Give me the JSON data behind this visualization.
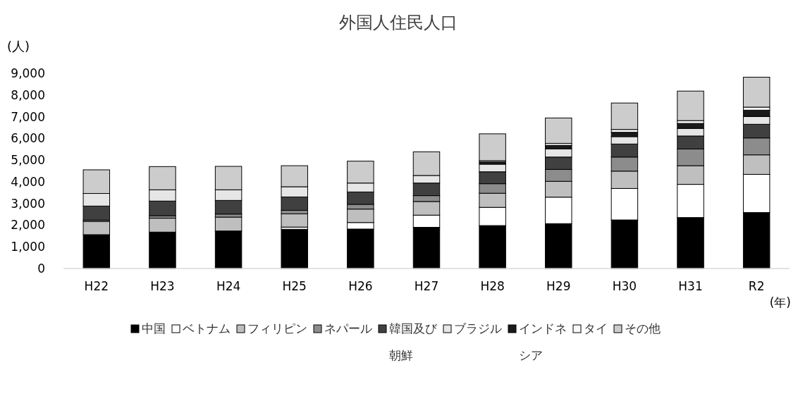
{
  "chart_data": {
    "type": "bar",
    "title": "外国人住民人口",
    "ylabel": "(人)",
    "xlabel": "(年)",
    "stacked": true,
    "legend": "bottom",
    "grid": false,
    "categories": [
      "H22",
      "H23",
      "H24",
      "H25",
      "H26",
      "H27",
      "H28",
      "H29",
      "H30",
      "H31",
      "R2"
    ],
    "ylim": [
      0,
      9000
    ],
    "yticks": [
      0,
      {
        "value": 1000,
        "label": "1,000"
      },
      {
        "value": 2000,
        "label": "2,000"
      },
      {
        "value": 3000,
        "label": "3,000"
      },
      {
        "value": 4000,
        "label": "4,000"
      },
      {
        "value": 5000,
        "label": "5,000"
      },
      {
        "value": 6000,
        "label": "6,000"
      },
      {
        "value": 7000,
        "label": "7,000"
      },
      {
        "value": 8000,
        "label": "8,000"
      },
      {
        "value": 9000,
        "label": "9,000"
      }
    ],
    "series": [
      {
        "name": "中国",
        "color": "#000000",
        "values": [
          1560,
          1680,
          1730,
          1810,
          1820,
          1900,
          1980,
          2070,
          2240,
          2350,
          2580
        ]
      },
      {
        "name": "ベトナム",
        "color": "#ffffff",
        "values": [
          null,
          null,
          null,
          100,
          300,
          560,
          840,
          1220,
          1450,
          1530,
          1760
        ]
      },
      {
        "name": "フィリピン",
        "color": "#bfbfbf",
        "values": [
          610,
          640,
          640,
          610,
          620,
          630,
          650,
          730,
          800,
          860,
          900
        ]
      },
      {
        "name": "ネパール",
        "color": "#8c8c8c",
        "values": [
          60,
          110,
          140,
          160,
          220,
          270,
          440,
          550,
          650,
          770,
          780
        ]
      },
      {
        "name": "韓国及び朝鮮",
        "color": "#404040",
        "values": [
          650,
          680,
          630,
          620,
          570,
          580,
          550,
          570,
          600,
          600,
          630
        ]
      },
      {
        "name": "ブラジル",
        "color": "#e6e6e6",
        "values": [
          580,
          520,
          490,
          470,
          410,
          350,
          350,
          380,
          340,
          350,
          360
        ]
      },
      {
        "name": "インドネシア",
        "color": "#1a1a1a",
        "values": [
          0,
          0,
          0,
          0,
          0,
          0,
          100,
          160,
          200,
          230,
          290
        ]
      },
      {
        "name": "タイ",
        "color": "#fafafa",
        "values": [
          0,
          0,
          0,
          0,
          0,
          0,
          60,
          90,
          130,
          130,
          140
        ]
      },
      {
        "name": "その他",
        "color": "#cccccc",
        "values": [
          1090,
          1070,
          1080,
          970,
          1010,
          1090,
          1240,
          1170,
          1220,
          1360,
          1380
        ]
      }
    ]
  }
}
